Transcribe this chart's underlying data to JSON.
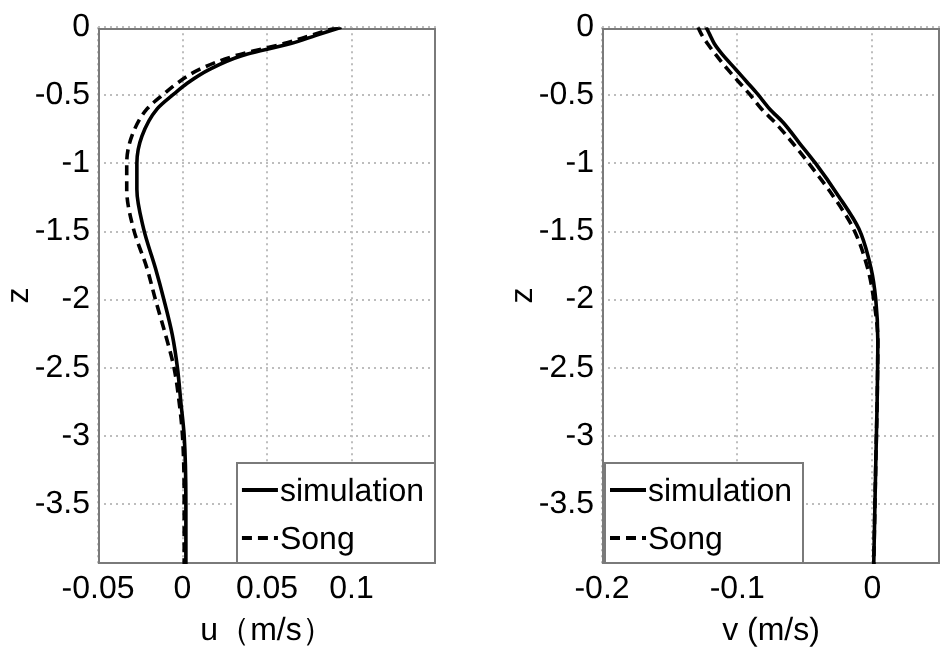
{
  "chart_data": [
    {
      "type": "line",
      "xlabel": "u（m/s）",
      "ylabel": "z",
      "xlim": [
        -0.05,
        0.15
      ],
      "xticks": [
        -0.05,
        0,
        0.05,
        0.1
      ],
      "ylim": [
        -3.94,
        0
      ],
      "yticks": [
        -3.5,
        -3,
        -2.5,
        -2,
        -1.5,
        -1,
        -0.5,
        0
      ],
      "grid": true,
      "legend": "bottom right",
      "marker": "none",
      "series": [
        {
          "name": "simulation",
          "color": "#000000",
          "line_style": "solid",
          "x": [
            0.094,
            0.079,
            0.064,
            0.035,
            0.016,
            0.003,
            -0.005,
            -0.015,
            -0.024,
            -0.027,
            -0.027,
            -0.023,
            -0.016,
            -0.011,
            -0.006,
            -0.003,
            -0.001,
            0.001,
            0.002,
            0.002
          ],
          "values": [
            0,
            -0.06,
            -0.12,
            -0.21,
            -0.31,
            -0.41,
            -0.49,
            -0.6,
            -0.8,
            -1.0,
            -1.19,
            -1.48,
            -1.77,
            -2.0,
            -2.26,
            -2.5,
            -2.75,
            -3.0,
            -3.5,
            -3.94
          ]
        },
        {
          "name": "Song",
          "color": "#000000",
          "line_style": "dashed",
          "x": [
            0.092,
            0.076,
            0.06,
            0.031,
            0.01,
            -0.003,
            -0.011,
            -0.021,
            -0.03,
            -0.033,
            -0.033,
            -0.029,
            -0.021,
            -0.016,
            -0.01,
            -0.005,
            -0.002,
            0,
            0.001,
            0.001
          ],
          "values": [
            0,
            -0.06,
            -0.12,
            -0.21,
            -0.31,
            -0.41,
            -0.49,
            -0.6,
            -0.8,
            -1.0,
            -1.19,
            -1.48,
            -1.77,
            -2.0,
            -2.26,
            -2.5,
            -2.75,
            -3.0,
            -3.5,
            -3.94
          ]
        }
      ]
    },
    {
      "type": "line",
      "xlabel": "v (m/s)",
      "ylabel": "z",
      "xlim": [
        -0.2,
        0.05
      ],
      "xticks": [
        -0.2,
        -0.1,
        0
      ],
      "ylim": [
        -3.94,
        0
      ],
      "yticks": [
        -3.5,
        -3,
        -2.5,
        -2,
        -1.5,
        -1,
        -0.5,
        0
      ],
      "grid": true,
      "legend": "bottom left",
      "marker": "none",
      "series": [
        {
          "name": "simulation",
          "color": "#000000",
          "line_style": "solid",
          "x": [
            -0.123,
            -0.12,
            -0.117,
            -0.111,
            -0.101,
            -0.093,
            -0.085,
            -0.076,
            -0.066,
            -0.054,
            -0.042,
            -0.025,
            -0.01,
            -0.001,
            0.0025,
            0.004,
            0.0035,
            0.0025,
            0.001
          ],
          "values": [
            0,
            -0.06,
            -0.12,
            -0.2,
            -0.31,
            -0.4,
            -0.49,
            -0.6,
            -0.7,
            -0.85,
            -1.0,
            -1.24,
            -1.48,
            -1.77,
            -2.0,
            -2.3,
            -2.75,
            -3.2,
            -3.94
          ]
        },
        {
          "name": "Song",
          "color": "#000000",
          "line_style": "dashed",
          "x": [
            -0.129,
            -0.126,
            -0.122,
            -0.116,
            -0.107,
            -0.099,
            -0.091,
            -0.082,
            -0.072,
            -0.059,
            -0.047,
            -0.029,
            -0.014,
            -0.0035,
            0.001,
            0.004,
            0.0035,
            0.0025,
            0.001
          ],
          "values": [
            0,
            -0.06,
            -0.12,
            -0.2,
            -0.31,
            -0.4,
            -0.49,
            -0.6,
            -0.7,
            -0.85,
            -1.0,
            -1.24,
            -1.48,
            -1.77,
            -2.0,
            -2.3,
            -2.75,
            -3.2,
            -3.94
          ]
        }
      ]
    }
  ]
}
